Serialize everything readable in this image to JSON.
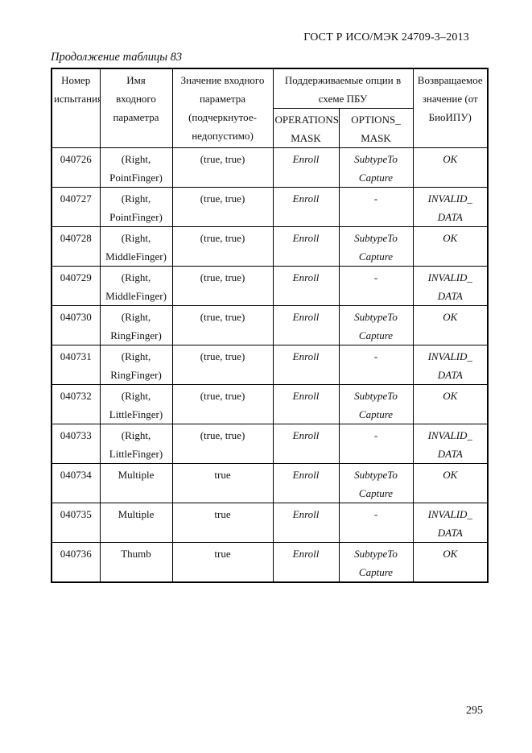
{
  "page": {
    "doc_header": "ГОСТ Р ИСО/МЭК 24709-3–2013",
    "table_caption": "Продолжение таблицы 83",
    "page_number": "295"
  },
  "table": {
    "header": {
      "col_test_number": "Номер\nиспытания",
      "col_param_name": "Имя\nвходного\nпараметра",
      "col_param_value": "Значение входного\nпараметра\n(подчеркнутое-\nнедопустимо)",
      "col_supported_options": "Поддерживаемые опции в\nсхеме ПБУ",
      "col_operations_mask": "OPERATIONS_\nMASK",
      "col_options_mask": "OPTIONS_\nMASK",
      "col_return_value": "Возвращаемое\nзначение (от\nБиоИПУ)"
    },
    "rows": [
      {
        "test_number": "040726",
        "param_name": "(Right,\nPointFinger)",
        "param_value": "(true, true)",
        "operations_mask": "Enroll",
        "options_mask": "SubtypeTo\nCapture",
        "return_value": "OK"
      },
      {
        "test_number": "040727",
        "param_name": "(Right,\nPointFinger)",
        "param_value": "(true, true)",
        "operations_mask": "Enroll",
        "options_mask": "-",
        "return_value": "INVALID_\nDATA"
      },
      {
        "test_number": "040728",
        "param_name": "(Right,\nMiddleFinger)",
        "param_value": "(true, true)",
        "operations_mask": "Enroll",
        "options_mask": "SubtypeTo\nCapture",
        "return_value": "OK"
      },
      {
        "test_number": "040729",
        "param_name": "(Right,\nMiddleFinger)",
        "param_value": "(true, true)",
        "operations_mask": "Enroll",
        "options_mask": "-",
        "return_value": "INVALID_\nDATA"
      },
      {
        "test_number": "040730",
        "param_name": "(Right,\nRingFinger)",
        "param_value": "(true, true)",
        "operations_mask": "Enroll",
        "options_mask": "SubtypeTo\nCapture",
        "return_value": "OK"
      },
      {
        "test_number": "040731",
        "param_name": "(Right,\nRingFinger)",
        "param_value": "(true, true)",
        "operations_mask": "Enroll",
        "options_mask": "-",
        "return_value": "INVALID_\nDATA"
      },
      {
        "test_number": "040732",
        "param_name": "(Right,\nLittleFinger)",
        "param_value": "(true, true)",
        "operations_mask": "Enroll",
        "options_mask": "SubtypeTo\nCapture",
        "return_value": "OK"
      },
      {
        "test_number": "040733",
        "param_name": "(Right,\nLittleFinger)",
        "param_value": "(true, true)",
        "operations_mask": "Enroll",
        "options_mask": "-",
        "return_value": "INVALID_\nDATA"
      },
      {
        "test_number": "040734",
        "param_name": "Multiple",
        "param_value": "true",
        "operations_mask": "Enroll",
        "options_mask": "SubtypeTo\nCapture",
        "return_value": "OK"
      },
      {
        "test_number": "040735",
        "param_name": "Multiple",
        "param_value": "true",
        "operations_mask": "Enroll",
        "options_mask": "-",
        "return_value": "INVALID_\nDATA"
      },
      {
        "test_number": "040736",
        "param_name": "Thumb",
        "param_value": "true",
        "operations_mask": "Enroll",
        "options_mask": "SubtypeTo\nCapture",
        "return_value": "OK"
      }
    ]
  }
}
